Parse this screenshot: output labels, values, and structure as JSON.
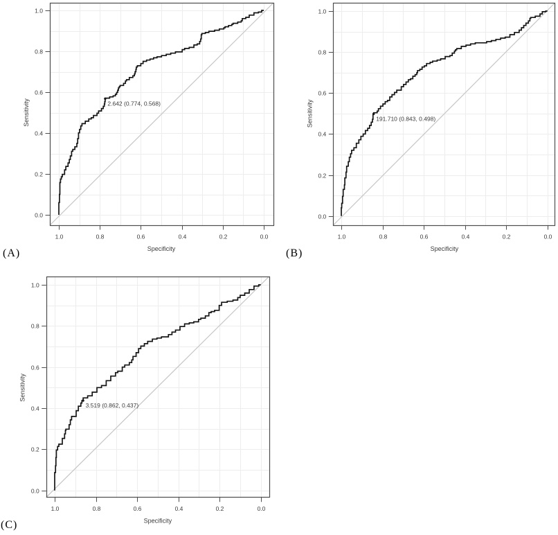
{
  "colors": {
    "curve": "#161616",
    "diagonal": "#c6c6c6",
    "grid": "#ededed",
    "frame": "#4d4d4d",
    "text": "#3c3c3c",
    "panel_label": "#000000",
    "background": "#ffffff"
  },
  "chart_data": [
    {
      "type": "line",
      "subtype": "roc-curve",
      "panel_label": "(A)",
      "xlabel": "Specificity",
      "ylabel": "Sensitivity",
      "x_axis": {
        "label": "Specificity",
        "min": 0.0,
        "max": 1.0,
        "reversed": true,
        "ticks": [
          "1.0",
          "0.8",
          "0.6",
          "0.4",
          "0.2",
          "0.0"
        ],
        "grid_step": 0.1
      },
      "y_axis": {
        "label": "Sensitivity",
        "min": 0.0,
        "max": 1.0,
        "ticks": [
          "0.0",
          "0.2",
          "0.4",
          "0.6",
          "0.8",
          "1.0"
        ],
        "grid_step": 0.1
      },
      "grid": true,
      "diagonal_reference_line": true,
      "best_threshold": {
        "label": "2.642 (0.774, 0.568)",
        "threshold": 2.642,
        "specificity": 0.774,
        "sensitivity": 0.568
      },
      "series": [
        {
          "name": "ROC curve",
          "points": [
            [
              1.0,
              0.0
            ],
            [
              0.997,
              0.06
            ],
            [
              0.995,
              0.1
            ],
            [
              0.992,
              0.158
            ],
            [
              0.988,
              0.175
            ],
            [
              0.983,
              0.186
            ],
            [
              0.972,
              0.198
            ],
            [
              0.966,
              0.22
            ],
            [
              0.955,
              0.237
            ],
            [
              0.949,
              0.254
            ],
            [
              0.944,
              0.271
            ],
            [
              0.938,
              0.288
            ],
            [
              0.932,
              0.311
            ],
            [
              0.922,
              0.32
            ],
            [
              0.912,
              0.333
            ],
            [
              0.908,
              0.35
            ],
            [
              0.904,
              0.373
            ],
            [
              0.899,
              0.401
            ],
            [
              0.893,
              0.418
            ],
            [
              0.887,
              0.435
            ],
            [
              0.871,
              0.446
            ],
            [
              0.854,
              0.458
            ],
            [
              0.842,
              0.469
            ],
            [
              0.831,
              0.475
            ],
            [
              0.814,
              0.486
            ],
            [
              0.806,
              0.497
            ],
            [
              0.792,
              0.508
            ],
            [
              0.783,
              0.52
            ],
            [
              0.778,
              0.531
            ],
            [
              0.776,
              0.542
            ],
            [
              0.774,
              0.554
            ],
            [
              0.774,
              0.568
            ],
            [
              0.752,
              0.571
            ],
            [
              0.735,
              0.577
            ],
            [
              0.724,
              0.582
            ],
            [
              0.718,
              0.59
            ],
            [
              0.713,
              0.599
            ],
            [
              0.709,
              0.61
            ],
            [
              0.705,
              0.621
            ],
            [
              0.701,
              0.627
            ],
            [
              0.684,
              0.633
            ],
            [
              0.675,
              0.643
            ],
            [
              0.67,
              0.655
            ],
            [
              0.656,
              0.661
            ],
            [
              0.639,
              0.672
            ],
            [
              0.631,
              0.68
            ],
            [
              0.628,
              0.689
            ],
            [
              0.624,
              0.7
            ],
            [
              0.622,
              0.712
            ],
            [
              0.617,
              0.723
            ],
            [
              0.6,
              0.729
            ],
            [
              0.589,
              0.74
            ],
            [
              0.572,
              0.751
            ],
            [
              0.555,
              0.757
            ],
            [
              0.538,
              0.762
            ],
            [
              0.521,
              0.768
            ],
            [
              0.499,
              0.773
            ],
            [
              0.476,
              0.779
            ],
            [
              0.454,
              0.785
            ],
            [
              0.431,
              0.791
            ],
            [
              0.398,
              0.797
            ],
            [
              0.386,
              0.808
            ],
            [
              0.364,
              0.814
            ],
            [
              0.341,
              0.819
            ],
            [
              0.325,
              0.831
            ],
            [
              0.313,
              0.836
            ],
            [
              0.308,
              0.848
            ],
            [
              0.305,
              0.86
            ],
            [
              0.302,
              0.881
            ],
            [
              0.285,
              0.887
            ],
            [
              0.268,
              0.892
            ],
            [
              0.24,
              0.898
            ],
            [
              0.217,
              0.903
            ],
            [
              0.195,
              0.909
            ],
            [
              0.189,
              0.915
            ],
            [
              0.172,
              0.92
            ],
            [
              0.156,
              0.926
            ],
            [
              0.15,
              0.932
            ],
            [
              0.127,
              0.937
            ],
            [
              0.11,
              0.943
            ],
            [
              0.105,
              0.949
            ],
            [
              0.088,
              0.96
            ],
            [
              0.071,
              0.966
            ],
            [
              0.048,
              0.977
            ],
            [
              0.026,
              0.988
            ],
            [
              0.01,
              0.992
            ],
            [
              0.0,
              1.0
            ]
          ]
        }
      ]
    },
    {
      "type": "line",
      "subtype": "roc-curve",
      "panel_label": "(B)",
      "xlabel": "Specificity",
      "ylabel": "Sensitivity",
      "x_axis": {
        "label": "Specificity",
        "min": 0.0,
        "max": 1.0,
        "reversed": true,
        "ticks": [
          "1.0",
          "0.8",
          "0.6",
          "0.4",
          "0.2",
          "0.0"
        ],
        "grid_step": 0.1
      },
      "y_axis": {
        "label": "Sensitivity",
        "min": 0.0,
        "max": 1.0,
        "ticks": [
          "0.0",
          "0.2",
          "0.4",
          "0.6",
          "0.8",
          "1.0"
        ],
        "grid_step": 0.1
      },
      "grid": true,
      "diagonal_reference_line": true,
      "best_threshold": {
        "label": "191.710 (0.843, 0.498)",
        "threshold": 191.71,
        "specificity": 0.843,
        "sensitivity": 0.498
      },
      "series": [
        {
          "name": "ROC curve",
          "points": [
            [
              1.0,
              0.0
            ],
            [
              0.998,
              0.04
            ],
            [
              0.994,
              0.062
            ],
            [
              0.991,
              0.096
            ],
            [
              0.985,
              0.13
            ],
            [
              0.983,
              0.152
            ],
            [
              0.977,
              0.186
            ],
            [
              0.974,
              0.214
            ],
            [
              0.966,
              0.243
            ],
            [
              0.961,
              0.265
            ],
            [
              0.955,
              0.287
            ],
            [
              0.95,
              0.304
            ],
            [
              0.939,
              0.321
            ],
            [
              0.927,
              0.333
            ],
            [
              0.915,
              0.355
            ],
            [
              0.905,
              0.372
            ],
            [
              0.894,
              0.389
            ],
            [
              0.883,
              0.4
            ],
            [
              0.872,
              0.417
            ],
            [
              0.863,
              0.428
            ],
            [
              0.855,
              0.442
            ],
            [
              0.849,
              0.458
            ],
            [
              0.846,
              0.472
            ],
            [
              0.843,
              0.498
            ],
            [
              0.826,
              0.504
            ],
            [
              0.82,
              0.512
            ],
            [
              0.81,
              0.524
            ],
            [
              0.798,
              0.536
            ],
            [
              0.787,
              0.547
            ],
            [
              0.776,
              0.558
            ],
            [
              0.765,
              0.564
            ],
            [
              0.754,
              0.581
            ],
            [
              0.742,
              0.592
            ],
            [
              0.731,
              0.603
            ],
            [
              0.709,
              0.614
            ],
            [
              0.698,
              0.631
            ],
            [
              0.686,
              0.642
            ],
            [
              0.675,
              0.654
            ],
            [
              0.664,
              0.665
            ],
            [
              0.653,
              0.67
            ],
            [
              0.642,
              0.682
            ],
            [
              0.634,
              0.69
            ],
            [
              0.63,
              0.699
            ],
            [
              0.619,
              0.71
            ],
            [
              0.608,
              0.716
            ],
            [
              0.597,
              0.727
            ],
            [
              0.586,
              0.733
            ],
            [
              0.569,
              0.744
            ],
            [
              0.557,
              0.75
            ],
            [
              0.535,
              0.756
            ],
            [
              0.518,
              0.761
            ],
            [
              0.496,
              0.767
            ],
            [
              0.473,
              0.778
            ],
            [
              0.462,
              0.783
            ],
            [
              0.451,
              0.795
            ],
            [
              0.446,
              0.805
            ],
            [
              0.44,
              0.811
            ],
            [
              0.418,
              0.817
            ],
            [
              0.395,
              0.828
            ],
            [
              0.373,
              0.834
            ],
            [
              0.35,
              0.84
            ],
            [
              0.295,
              0.845
            ],
            [
              0.272,
              0.851
            ],
            [
              0.25,
              0.856
            ],
            [
              0.227,
              0.862
            ],
            [
              0.205,
              0.868
            ],
            [
              0.182,
              0.873
            ],
            [
              0.16,
              0.885
            ],
            [
              0.137,
              0.896
            ],
            [
              0.126,
              0.907
            ],
            [
              0.115,
              0.919
            ],
            [
              0.104,
              0.93
            ],
            [
              0.092,
              0.941
            ],
            [
              0.085,
              0.952
            ],
            [
              0.081,
              0.964
            ],
            [
              0.059,
              0.969
            ],
            [
              0.036,
              0.975
            ],
            [
              0.025,
              0.986
            ],
            [
              0.008,
              0.997
            ],
            [
              0.0,
              1.0
            ]
          ]
        }
      ]
    },
    {
      "type": "line",
      "subtype": "roc-curve",
      "panel_label": "(C)",
      "xlabel": "Specificity",
      "ylabel": "Sensitivity",
      "x_axis": {
        "label": "Specificity",
        "min": 0.0,
        "max": 1.0,
        "reversed": true,
        "ticks": [
          "1.0",
          "0.8",
          "0.6",
          "0.4",
          "0.2",
          "0.0"
        ],
        "grid_step": 0.1
      },
      "y_axis": {
        "label": "Sensitivity",
        "min": 0.0,
        "max": 1.0,
        "ticks": [
          "0.0",
          "0.2",
          "0.4",
          "0.6",
          "0.8",
          "1.0"
        ],
        "grid_step": 0.1
      },
      "grid": true,
      "diagonal_reference_line": true,
      "best_threshold": {
        "label": "3.519 (0.862, 0.437)",
        "threshold": 3.519,
        "specificity": 0.862,
        "sensitivity": 0.437
      },
      "series": [
        {
          "name": "ROC curve",
          "points": [
            [
              1.0,
              0.0
            ],
            [
              1.0,
              0.084
            ],
            [
              0.996,
              0.087
            ],
            [
              0.994,
              0.12
            ],
            [
              0.992,
              0.16
            ],
            [
              0.986,
              0.197
            ],
            [
              0.98,
              0.214
            ],
            [
              0.963,
              0.225
            ],
            [
              0.952,
              0.253
            ],
            [
              0.948,
              0.275
            ],
            [
              0.946,
              0.292
            ],
            [
              0.93,
              0.298
            ],
            [
              0.924,
              0.32
            ],
            [
              0.918,
              0.343
            ],
            [
              0.896,
              0.36
            ],
            [
              0.885,
              0.388
            ],
            [
              0.873,
              0.41
            ],
            [
              0.868,
              0.425
            ],
            [
              0.862,
              0.437
            ],
            [
              0.84,
              0.45
            ],
            [
              0.818,
              0.46
            ],
            [
              0.795,
              0.478
            ],
            [
              0.773,
              0.5
            ],
            [
              0.75,
              0.51
            ],
            [
              0.728,
              0.534
            ],
            [
              0.705,
              0.556
            ],
            [
              0.694,
              0.573
            ],
            [
              0.672,
              0.58
            ],
            [
              0.66,
              0.6
            ],
            [
              0.638,
              0.61
            ],
            [
              0.626,
              0.622
            ],
            [
              0.62,
              0.635
            ],
            [
              0.605,
              0.652
            ],
            [
              0.593,
              0.67
            ],
            [
              0.582,
              0.69
            ],
            [
              0.565,
              0.702
            ],
            [
              0.549,
              0.714
            ],
            [
              0.526,
              0.725
            ],
            [
              0.504,
              0.736
            ],
            [
              0.482,
              0.741
            ],
            [
              0.448,
              0.747
            ],
            [
              0.431,
              0.758
            ],
            [
              0.414,
              0.77
            ],
            [
              0.392,
              0.78
            ],
            [
              0.37,
              0.797
            ],
            [
              0.347,
              0.81
            ],
            [
              0.325,
              0.815
            ],
            [
              0.302,
              0.82
            ],
            [
              0.291,
              0.832
            ],
            [
              0.269,
              0.838
            ],
            [
              0.252,
              0.849
            ],
            [
              0.241,
              0.865
            ],
            [
              0.224,
              0.87
            ],
            [
              0.202,
              0.876
            ],
            [
              0.19,
              0.9
            ],
            [
              0.163,
              0.915
            ],
            [
              0.135,
              0.92
            ],
            [
              0.112,
              0.926
            ],
            [
              0.1,
              0.938
            ],
            [
              0.078,
              0.949
            ],
            [
              0.056,
              0.96
            ],
            [
              0.033,
              0.977
            ],
            [
              0.01,
              0.994
            ],
            [
              0.0,
              1.0
            ]
          ]
        }
      ]
    }
  ]
}
